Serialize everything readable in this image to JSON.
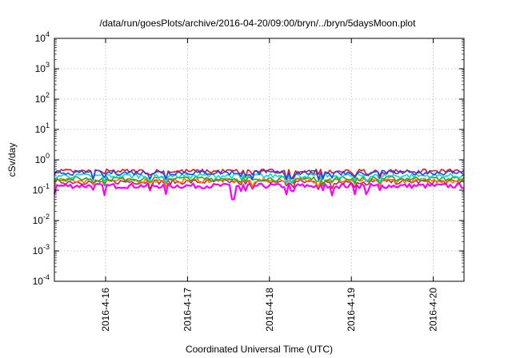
{
  "chart_data": {
    "type": "line",
    "title": "/data/run/goesPlots/archive/2016-04-20/09:00/bryn/../bryn/5daysMoon.plot",
    "xlabel": "Coordinated Universal Time (UTC)",
    "ylabel": "cSv/day",
    "yscale": "log",
    "ylim": [
      0.0001,
      10000
    ],
    "xlim": [
      "2016-04-15T09:00",
      "2016-04-20T09:00"
    ],
    "grid": true,
    "x_ticks": [
      "2016-4-16",
      "2016-4-17",
      "2016-4-18",
      "2016-4-19",
      "2016-4-20"
    ],
    "y_ticks": [
      {
        "base": "10",
        "exp": "-4"
      },
      {
        "base": "10",
        "exp": "-3"
      },
      {
        "base": "10",
        "exp": "-2"
      },
      {
        "base": "10",
        "exp": "-1"
      },
      {
        "base": "10",
        "exp": "0"
      },
      {
        "base": "10",
        "exp": "1"
      },
      {
        "base": "10",
        "exp": "2"
      },
      {
        "base": "10",
        "exp": "3"
      },
      {
        "base": "10",
        "exp": "4"
      }
    ],
    "series": [
      {
        "color": "#ff00ff",
        "level": 0.14,
        "dips": 0.09
      },
      {
        "color": "#cc2244",
        "level": 0.19,
        "dips": 0.14
      },
      {
        "color": "#ff7700",
        "level": 0.21,
        "dips": 0.16
      },
      {
        "color": "#22aa22",
        "level": 0.24,
        "dips": 0.18
      },
      {
        "color": "#00dddd",
        "level": 0.3,
        "dips": 0.22
      },
      {
        "color": "#ee1111",
        "level": 0.42,
        "dips": 0.3
      },
      {
        "color": "#2244ff",
        "level": 0.38,
        "dips": 0.27
      }
    ]
  }
}
